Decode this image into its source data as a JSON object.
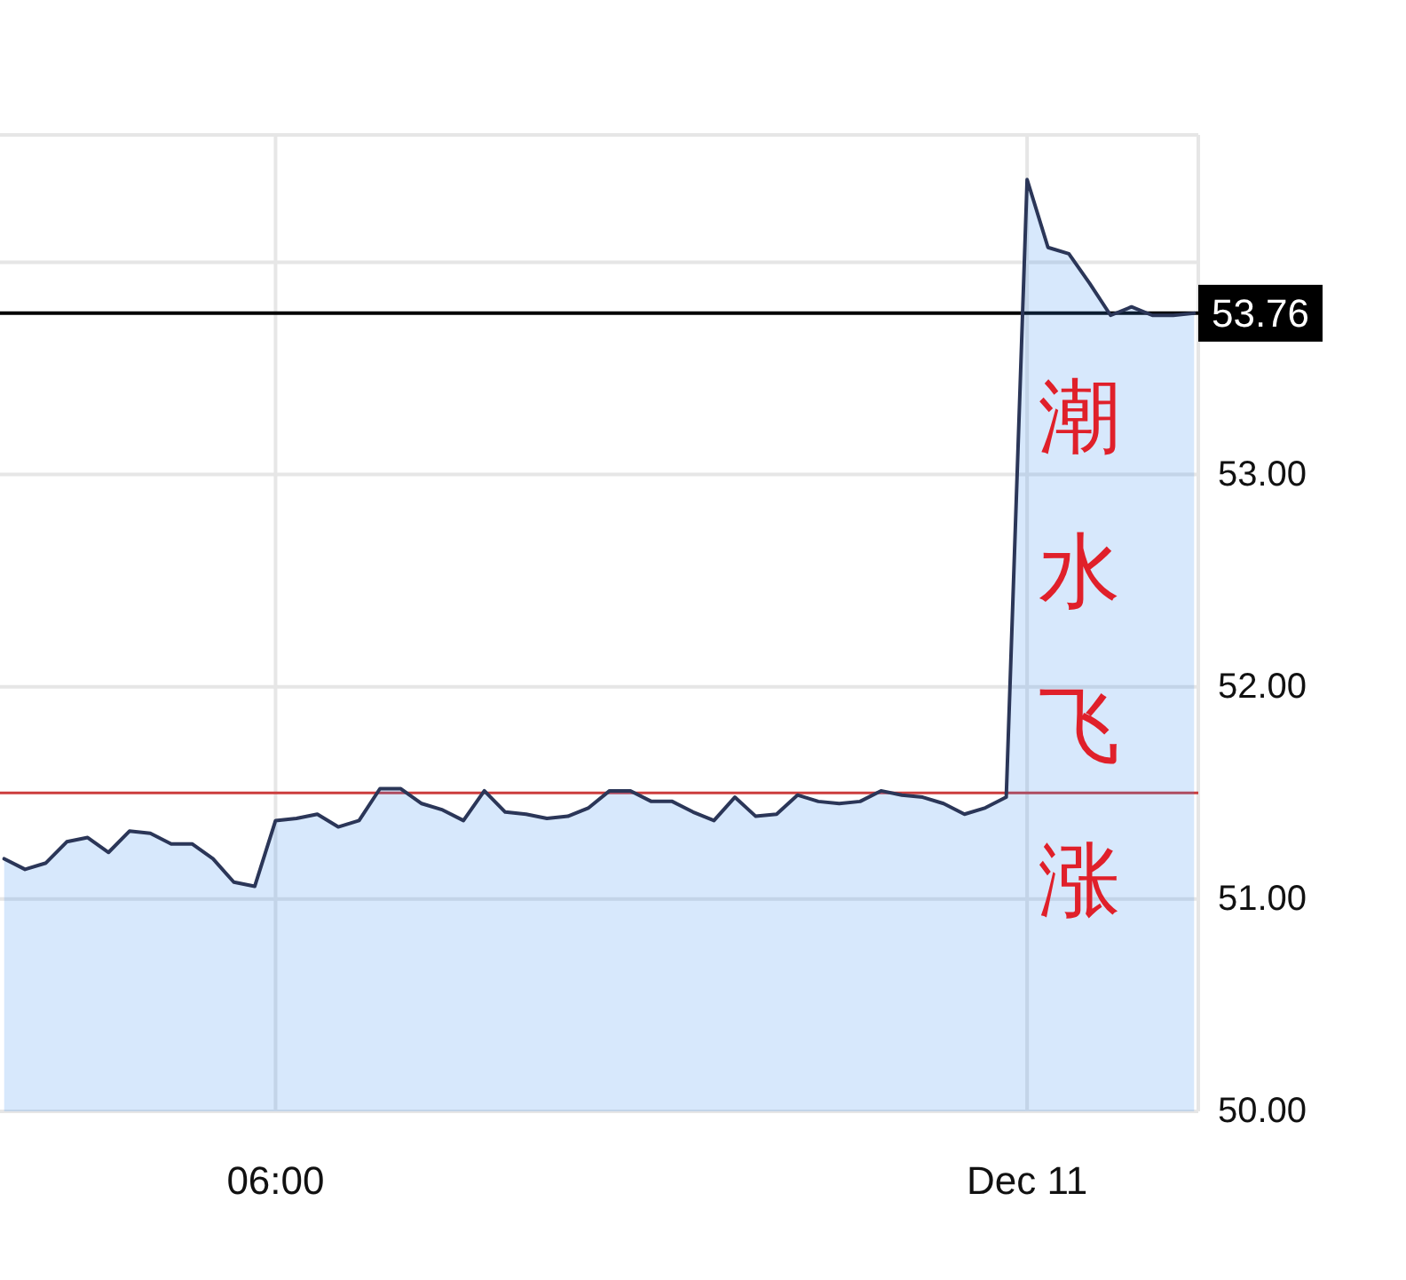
{
  "chart_data": {
    "type": "area",
    "categories": [
      null,
      null,
      null,
      null,
      null,
      null,
      null,
      null,
      null,
      null,
      null,
      null,
      null,
      "06:00",
      null,
      null,
      null,
      null,
      null,
      null,
      null,
      null,
      null,
      null,
      null,
      null,
      null,
      null,
      null,
      null,
      null,
      null,
      null,
      null,
      null,
      null,
      null,
      null,
      null,
      null,
      null,
      null,
      null,
      null,
      null,
      null,
      null,
      null,
      null,
      "Dec 11",
      null,
      null,
      null,
      null,
      null,
      null,
      null,
      null
    ],
    "values": [
      51.19,
      51.14,
      51.17,
      51.27,
      51.29,
      51.22,
      51.32,
      51.31,
      51.26,
      51.26,
      51.19,
      51.08,
      51.06,
      51.37,
      51.38,
      51.4,
      51.34,
      51.37,
      51.52,
      51.52,
      51.45,
      51.42,
      51.37,
      51.51,
      51.41,
      51.4,
      51.38,
      51.39,
      51.43,
      51.51,
      51.51,
      51.46,
      51.46,
      51.41,
      51.37,
      51.48,
      51.39,
      51.4,
      51.49,
      51.46,
      51.45,
      51.46,
      51.51,
      51.49,
      51.48,
      51.45,
      51.4,
      51.43,
      51.48,
      54.39,
      54.07,
      54.04,
      53.9,
      53.75,
      53.79,
      53.75,
      53.75,
      53.76
    ],
    "color": "#2b3658",
    "ylim": [
      50,
      54.6
    ],
    "yticks": [
      {
        "value": 50,
        "label": "50.00"
      },
      {
        "value": 51,
        "label": "51.00"
      },
      {
        "value": 52,
        "label": "52.00"
      },
      {
        "value": 53,
        "label": "53.00"
      },
      {
        "value": 54,
        "label": null
      }
    ],
    "grid": true,
    "ref_lines": [
      {
        "axis": "y",
        "value": 53.76,
        "label": "53.76",
        "color": "#000000"
      },
      {
        "axis": "y",
        "value": 51.5,
        "color": "#cc3d3d"
      }
    ],
    "annotations": [
      "潮水飞涨"
    ]
  }
}
